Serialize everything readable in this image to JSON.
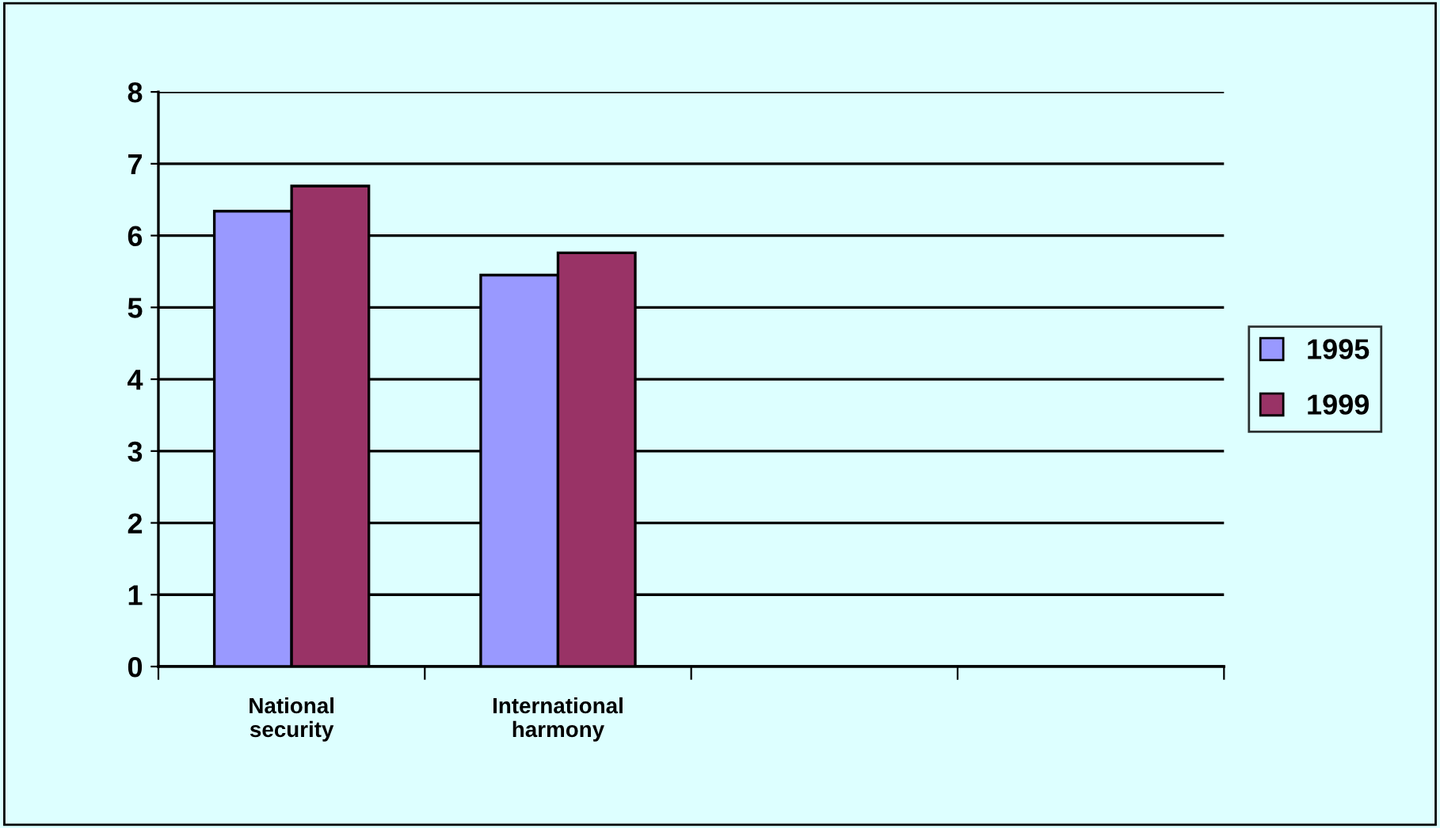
{
  "chart_data": {
    "type": "bar",
    "categories": [
      "National\nsecurity",
      "International\nharmony",
      null,
      null
    ],
    "series": [
      {
        "name": "1995",
        "color": "#9999ff",
        "values": [
          6.34,
          5.45,
          null,
          null
        ]
      },
      {
        "name": "1999",
        "color": "#993366",
        "values": [
          6.69,
          5.76,
          null,
          null
        ]
      }
    ],
    "ylim": [
      0,
      8
    ],
    "yticks": [
      0,
      1,
      2,
      3,
      4,
      5,
      6,
      7,
      8
    ],
    "grid": "y",
    "legend": "right"
  }
}
